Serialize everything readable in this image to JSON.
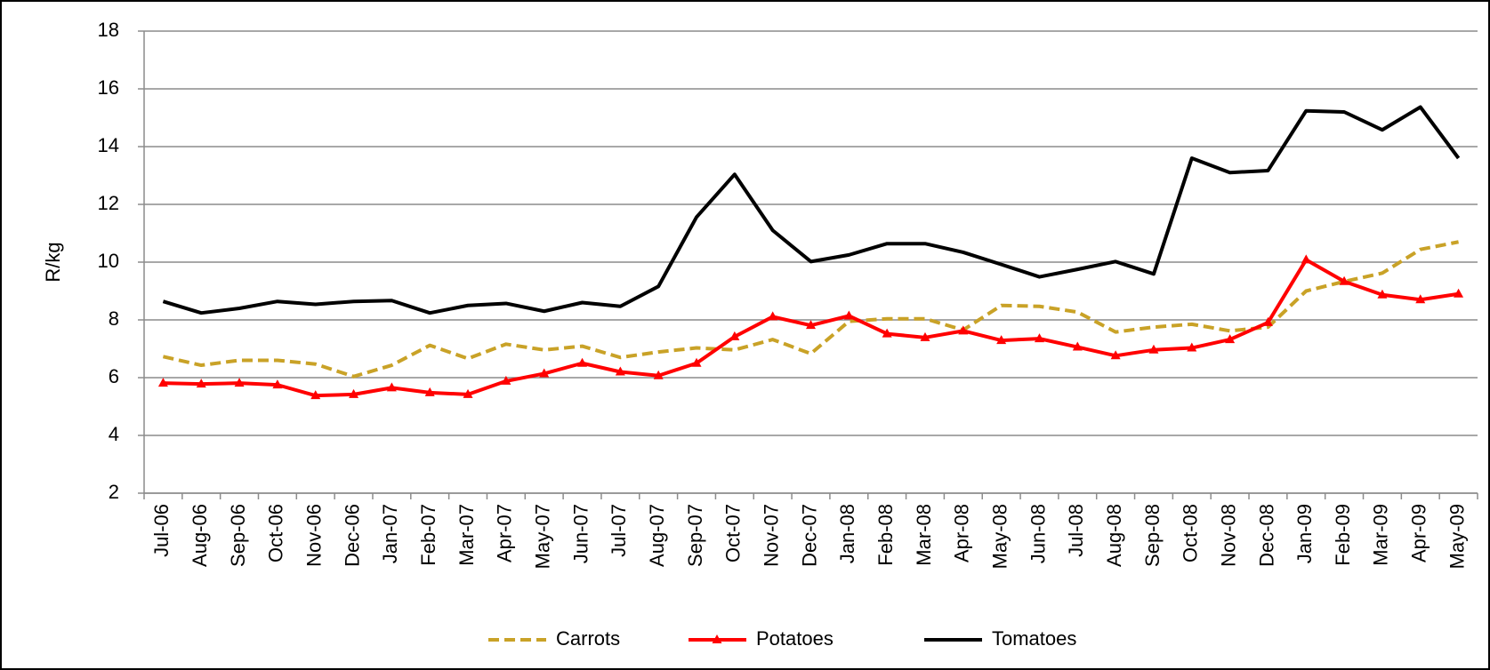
{
  "chart_data": {
    "type": "line",
    "y_label": "R/kg",
    "categories": [
      "Jul-06",
      "Aug-06",
      "Sep-06",
      "Oct-06",
      "Nov-06",
      "Dec-06",
      "Jan-07",
      "Feb-07",
      "Mar-07",
      "Apr-07",
      "May-07",
      "Jun-07",
      "Jul-07",
      "Aug-07",
      "Sep-07",
      "Oct-07",
      "Nov-07",
      "Dec-07",
      "Jan-08",
      "Feb-08",
      "Mar-08",
      "Apr-08",
      "May-08",
      "Jun-08",
      "Jul-08",
      "Aug-08",
      "Sep-08",
      "Oct-08",
      "Nov-08",
      "Dec-08",
      "Jan-09",
      "Feb-09",
      "Mar-09",
      "Apr-09",
      "May-09"
    ],
    "series": [
      {
        "name": "Carrots",
        "color": "#c9a227",
        "dash": true,
        "marker": false,
        "values": [
          6.73,
          6.43,
          6.6,
          6.6,
          6.47,
          6.04,
          6.43,
          7.12,
          6.66,
          7.16,
          6.96,
          7.09,
          6.7,
          6.89,
          7.03,
          6.96,
          7.32,
          6.83,
          7.95,
          8.04,
          8.04,
          7.65,
          8.5,
          8.47,
          8.27,
          7.58,
          7.75,
          7.85,
          7.62,
          7.75,
          9.0,
          9.33,
          9.62,
          10.44,
          10.7
        ]
      },
      {
        "name": "Potatoes",
        "color": "#ff0000",
        "dash": false,
        "marker": true,
        "values": [
          5.81,
          5.78,
          5.81,
          5.75,
          5.38,
          5.42,
          5.65,
          5.48,
          5.42,
          5.88,
          6.14,
          6.5,
          6.2,
          6.07,
          6.5,
          7.42,
          8.11,
          7.81,
          8.14,
          7.52,
          7.39,
          7.62,
          7.29,
          7.35,
          7.06,
          6.76,
          6.96,
          7.03,
          7.32,
          7.91,
          10.08,
          9.33,
          8.87,
          8.7,
          8.9
        ]
      },
      {
        "name": "Tomatoes",
        "color": "#000000",
        "dash": false,
        "marker": false,
        "values": [
          8.64,
          8.24,
          8.4,
          8.64,
          8.54,
          8.64,
          8.67,
          8.24,
          8.5,
          8.57,
          8.3,
          8.6,
          8.47,
          9.16,
          11.56,
          13.04,
          11.1,
          10.02,
          10.25,
          10.64,
          10.64,
          10.34,
          9.92,
          9.49,
          9.75,
          10.02,
          9.59,
          13.6,
          13.1,
          13.17,
          15.24,
          15.2,
          14.58,
          15.37,
          13.6
        ]
      }
    ],
    "ylim": [
      2,
      18
    ],
    "yticks": [
      2,
      4,
      6,
      8,
      10,
      12,
      14,
      16,
      18
    ],
    "grid": true,
    "legend": "bottom"
  }
}
